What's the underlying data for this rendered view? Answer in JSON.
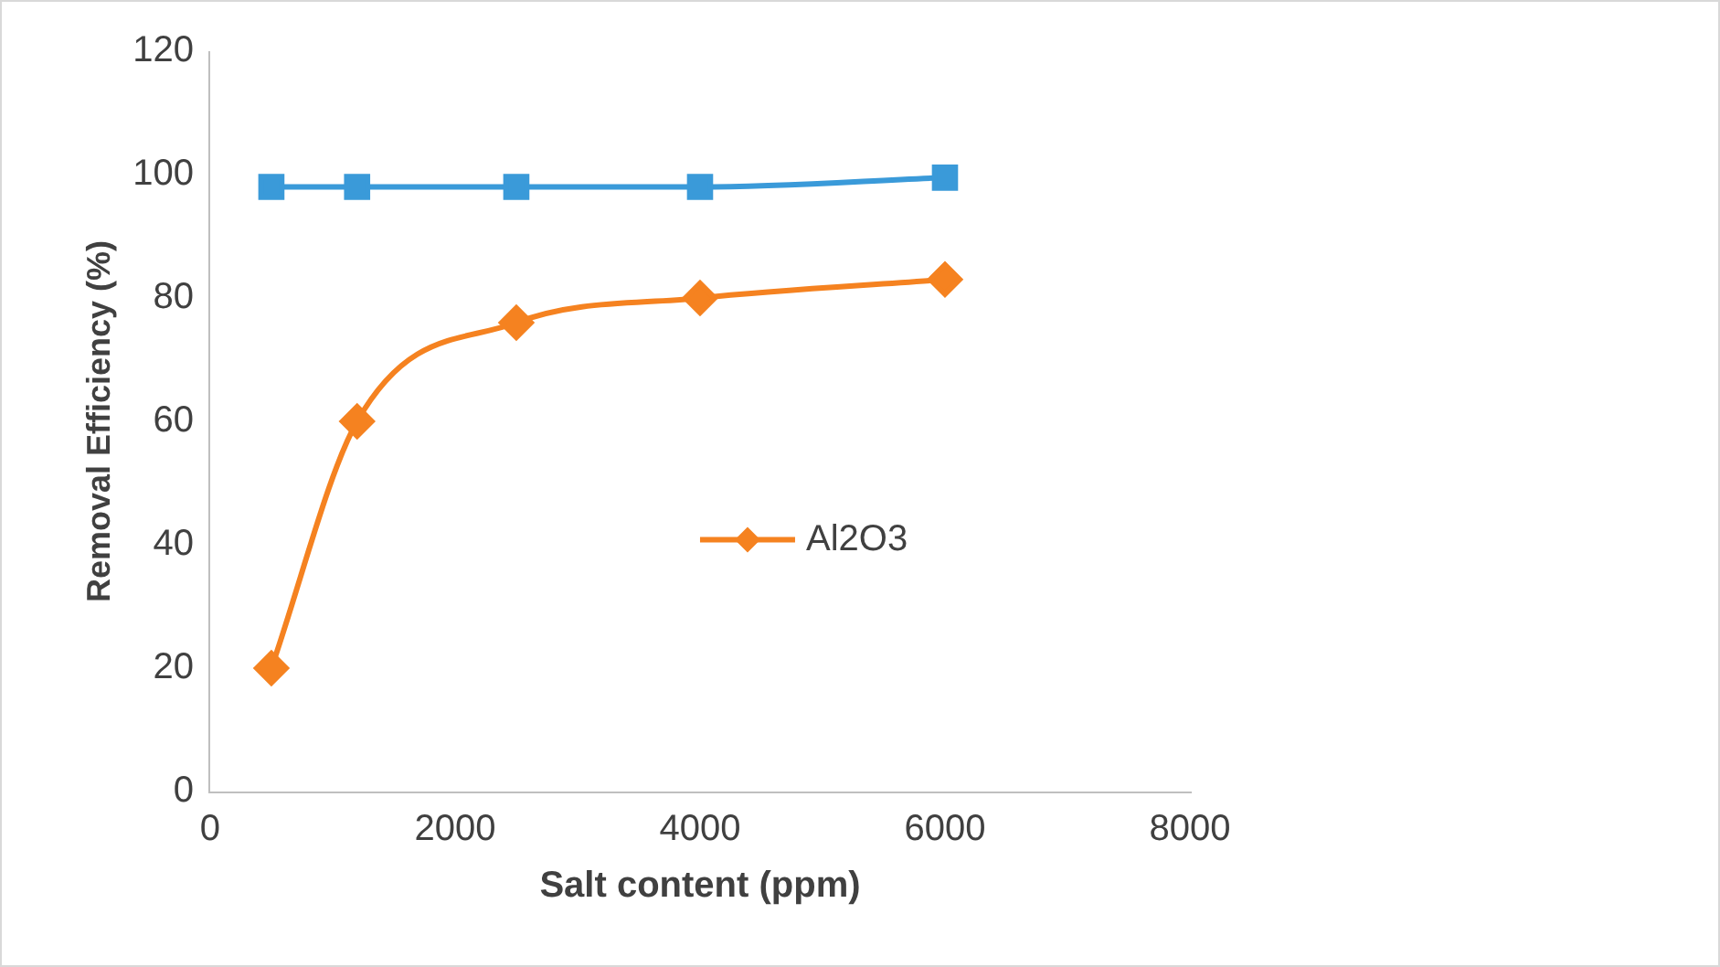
{
  "chart_data": {
    "type": "line",
    "xlabel": "Salt content (ppm)",
    "ylabel": "Removal Efficiency (%)",
    "x": [
      500,
      1200,
      2500,
      4000,
      6000
    ],
    "series": [
      {
        "color": "#3a9ad9",
        "marker": "square",
        "values": [
          98,
          98,
          98,
          98,
          99.5
        ]
      },
      {
        "name": "Al2O3",
        "color": "#f58220",
        "marker": "diamond",
        "values": [
          20,
          60,
          76,
          80,
          83
        ]
      }
    ],
    "xlim": [
      0,
      8000
    ],
    "xticks": [
      0,
      2000,
      4000,
      6000,
      8000
    ],
    "ylim": [
      0,
      120
    ],
    "yticks": [
      0,
      20,
      40,
      60,
      80,
      100,
      120
    ],
    "grid": false,
    "legend": "center"
  }
}
